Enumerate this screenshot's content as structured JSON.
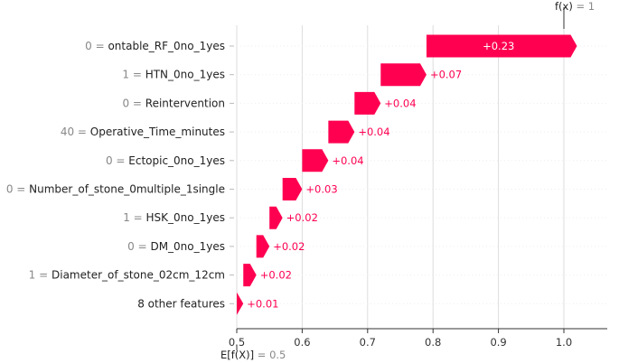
{
  "chart_data": {
    "type": "waterfall",
    "base_value": 0.5,
    "output_value": 1,
    "base_label": {
      "text": "E[f(X)]",
      "eq": " = ",
      "value": "0.5"
    },
    "output_label": {
      "text": "f(x)",
      "eq": " = ",
      "value": "1"
    },
    "xlim": [
      0.5,
      1.0
    ],
    "xticks": [
      0.5,
      0.6,
      0.7,
      0.8,
      0.9,
      1.0
    ],
    "xtick_labels": [
      "0.5",
      "0.6",
      "0.7",
      "0.8",
      "0.9",
      "1.0"
    ],
    "features": [
      {
        "value": "0",
        "name": "ontable_RF_0no_1yes",
        "contribution": 0.23,
        "label": "+0.23"
      },
      {
        "value": "1",
        "name": "HTN_0no_1yes",
        "contribution": 0.07,
        "label": "+0.07"
      },
      {
        "value": "0",
        "name": "Reintervention",
        "contribution": 0.04,
        "label": "+0.04"
      },
      {
        "value": "40",
        "name": "Operative_Time_minutes",
        "contribution": 0.04,
        "label": "+0.04"
      },
      {
        "value": "0",
        "name": "Ectopic_0no_1yes",
        "contribution": 0.04,
        "label": "+0.04"
      },
      {
        "value": "0",
        "name": "Number_of_stone_0multiple_1single",
        "contribution": 0.03,
        "label": "+0.03"
      },
      {
        "value": "1",
        "name": "HSK_0no_1yes",
        "contribution": 0.02,
        "label": "+0.02"
      },
      {
        "value": "0",
        "name": "DM_0no_1yes",
        "contribution": 0.02,
        "label": "+0.02"
      },
      {
        "value": "1",
        "name": "Diameter_of_stone_02cm_12cm",
        "contribution": 0.02,
        "label": "+0.02"
      },
      {
        "value": "",
        "name": "8 other features",
        "contribution": 0.01,
        "label": "+0.01"
      }
    ],
    "colors": {
      "positive": "#ff0051",
      "grid": "#dddddd",
      "axis": "#333333",
      "muted": "#888888"
    }
  }
}
